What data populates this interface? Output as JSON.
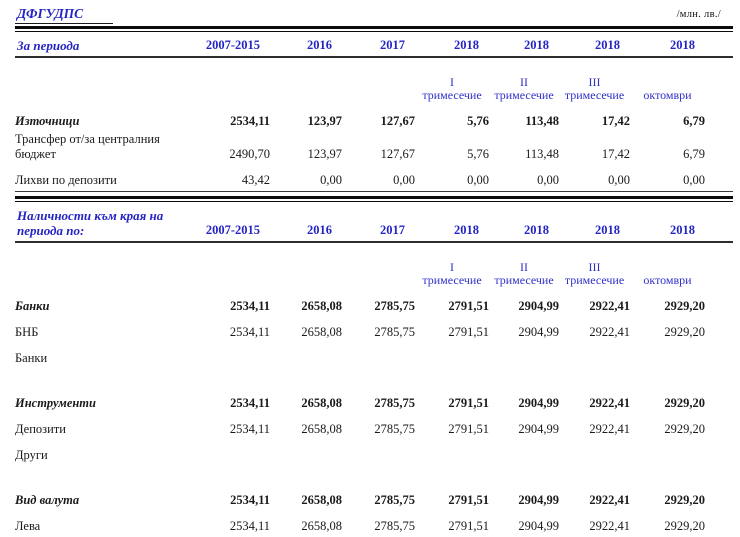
{
  "document": {
    "title": "ДФГУДПС",
    "unit_label": "/млн. лв./"
  },
  "colors": {
    "header_blue": "#2424c4",
    "body_text": "#1a1a1a"
  },
  "sections": [
    {
      "label": "За периода",
      "years": [
        "2007-2015",
        "2016",
        "2017",
        "2018",
        "2018",
        "2018",
        "2018"
      ],
      "subheaders": [
        {
          "line1": "",
          "line2": ""
        },
        {
          "line1": "",
          "line2": ""
        },
        {
          "line1": "",
          "line2": ""
        },
        {
          "line1": "I",
          "line2": "тримесечие"
        },
        {
          "line1": "II",
          "line2": "тримесечие"
        },
        {
          "line1": "III",
          "line2": "тримесечие"
        },
        {
          "line1": "",
          "line2": "октомври"
        }
      ],
      "rows": [
        {
          "label": "Източници",
          "bold": true,
          "values": [
            "2534,11",
            "123,97",
            "127,67",
            "5,76",
            "113,48",
            "17,42",
            "6,79"
          ]
        },
        {
          "label": "Трансфер от/за централния бюджет",
          "bold": false,
          "values": [
            "2490,70",
            "123,97",
            "127,67",
            "5,76",
            "113,48",
            "17,42",
            "6,79"
          ]
        },
        {
          "label": "Лихви по депозити",
          "bold": false,
          "underline": true,
          "values": [
            "43,42",
            "0,00",
            "0,00",
            "0,00",
            "0,00",
            "0,00",
            "0,00"
          ]
        }
      ]
    },
    {
      "label": "Наличности към края на периода по:",
      "years": [
        "2007-2015",
        "2016",
        "2017",
        "2018",
        "2018",
        "2018",
        "2018"
      ],
      "subheaders": [
        {
          "line1": "",
          "line2": ""
        },
        {
          "line1": "",
          "line2": ""
        },
        {
          "line1": "",
          "line2": ""
        },
        {
          "line1": "I",
          "line2": "тримесечие"
        },
        {
          "line1": "II",
          "line2": "тримесечие"
        },
        {
          "line1": "III",
          "line2": "тримесечие"
        },
        {
          "line1": "",
          "line2": "октомври"
        }
      ],
      "rows": [
        {
          "label": "Банки",
          "bold": true,
          "values": [
            "2534,11",
            "2658,08",
            "2785,75",
            "2791,51",
            "2904,99",
            "2922,41",
            "2929,20"
          ]
        },
        {
          "label": "БНБ",
          "bold": false,
          "values": [
            "2534,11",
            "2658,08",
            "2785,75",
            "2791,51",
            "2904,99",
            "2922,41",
            "2929,20"
          ]
        },
        {
          "label": "Банки",
          "bold": false,
          "values": []
        },
        {
          "label": "Инструменти",
          "bold": true,
          "gap_before": true,
          "values": [
            "2534,11",
            "2658,08",
            "2785,75",
            "2791,51",
            "2904,99",
            "2922,41",
            "2929,20"
          ]
        },
        {
          "label": "Депозити",
          "bold": false,
          "values": [
            "2534,11",
            "2658,08",
            "2785,75",
            "2791,51",
            "2904,99",
            "2922,41",
            "2929,20"
          ]
        },
        {
          "label": "Други",
          "bold": false,
          "values": []
        },
        {
          "label": "Вид валута",
          "bold": true,
          "gap_before": true,
          "values": [
            "2534,11",
            "2658,08",
            "2785,75",
            "2791,51",
            "2904,99",
            "2922,41",
            "2929,20"
          ]
        },
        {
          "label": "Лева",
          "bold": false,
          "values": [
            "2534,11",
            "2658,08",
            "2785,75",
            "2791,51",
            "2904,99",
            "2922,41",
            "2929,20"
          ]
        }
      ]
    }
  ]
}
